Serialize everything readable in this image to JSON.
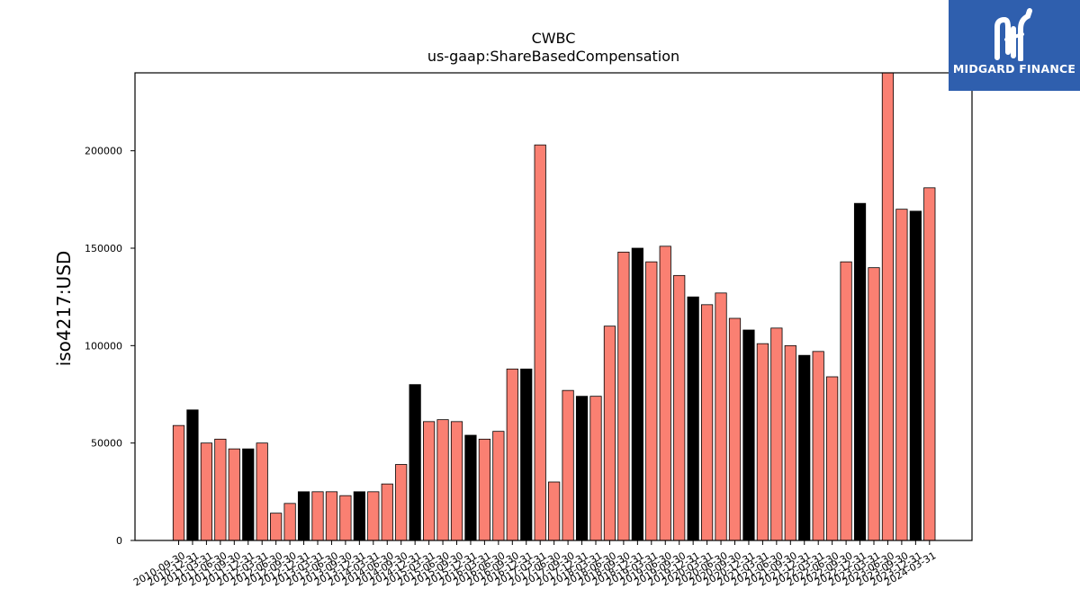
{
  "chart_data": {
    "type": "bar",
    "title": "CWBC",
    "subtitle": "us-gaap:ShareBasedCompensation",
    "xlabel": "",
    "ylabel": "iso4217:USD",
    "ylim": [
      0,
      240000
    ],
    "yticks": [
      0,
      50000,
      100000,
      150000,
      200000
    ],
    "grid": false,
    "colors": {
      "default": "#fa8072",
      "highlight": "#000000",
      "edge": "#000000"
    },
    "categories": [
      "2010-09-30",
      "2010-12-31",
      "2011-03-31",
      "2011-06-30",
      "2011-09-30",
      "2011-12-31",
      "2012-03-31",
      "2012-06-30",
      "2012-09-30",
      "2012-12-31",
      "2013-03-31",
      "2013-06-30",
      "2013-09-30",
      "2013-12-31",
      "2014-03-31",
      "2014-06-30",
      "2014-09-30",
      "2014-12-31",
      "2015-03-31",
      "2015-06-30",
      "2015-09-30",
      "2015-12-31",
      "2016-03-31",
      "2016-06-30",
      "2016-09-30",
      "2016-12-31",
      "2017-03-31",
      "2017-06-30",
      "2017-09-30",
      "2017-12-31",
      "2018-03-31",
      "2018-06-30",
      "2018-09-30",
      "2018-12-31",
      "2019-03-31",
      "2019-06-30",
      "2019-09-30",
      "2019-12-31",
      "2020-03-31",
      "2020-06-30",
      "2020-09-30",
      "2020-12-31",
      "2021-03-31",
      "2021-06-30",
      "2021-09-30",
      "2021-12-31",
      "2022-03-31",
      "2022-06-30",
      "2022-09-30",
      "2022-12-31",
      "2023-03-31",
      "2023-06-30",
      "2023-09-30",
      "2023-12-31",
      "2024-03-31"
    ],
    "values": [
      59000,
      67000,
      50000,
      52000,
      47000,
      47000,
      50000,
      14000,
      19000,
      25000,
      25000,
      25000,
      23000,
      25000,
      25000,
      29000,
      39000,
      80000,
      61000,
      62000,
      61000,
      54000,
      52000,
      56000,
      88000,
      88000,
      203000,
      30000,
      77000,
      74000,
      74000,
      110000,
      148000,
      150000,
      143000,
      151000,
      136000,
      125000,
      121000,
      127000,
      114000,
      108000,
      101000,
      109000,
      100000,
      95000,
      97000,
      84000,
      143000,
      173000,
      140000,
      242000,
      170000,
      169000,
      181000
    ],
    "highlighted": [
      false,
      true,
      false,
      false,
      false,
      true,
      false,
      false,
      false,
      true,
      false,
      false,
      false,
      true,
      false,
      false,
      false,
      true,
      false,
      false,
      false,
      true,
      false,
      false,
      false,
      true,
      false,
      false,
      false,
      true,
      false,
      false,
      false,
      true,
      false,
      false,
      false,
      true,
      false,
      false,
      false,
      true,
      false,
      false,
      false,
      true,
      false,
      false,
      false,
      true,
      false,
      false,
      false,
      true,
      false
    ]
  },
  "logo": {
    "text": "MIDGARD FINANCE"
  }
}
